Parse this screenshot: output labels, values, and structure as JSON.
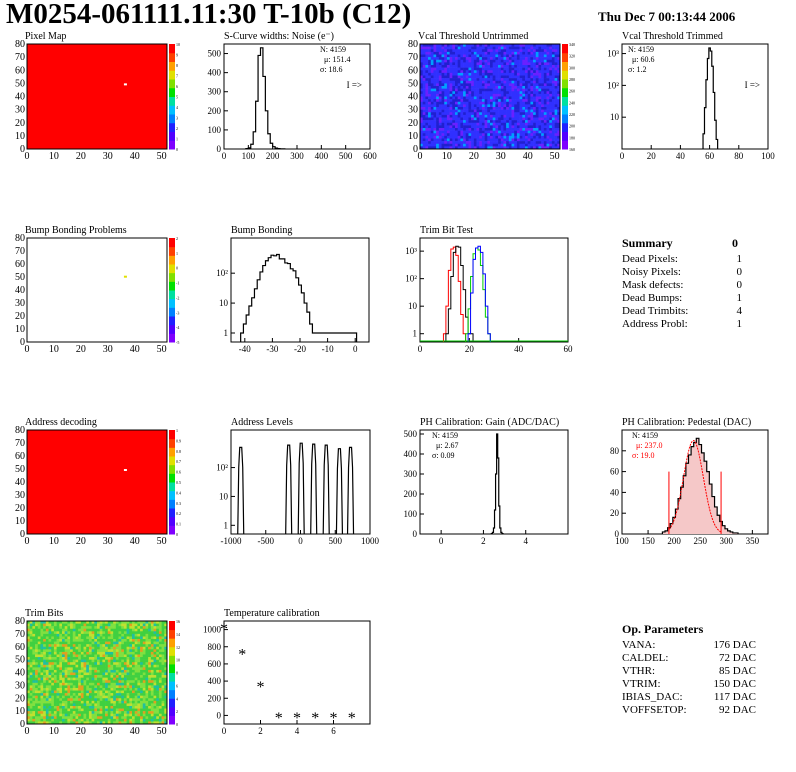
{
  "header": {
    "title": "M0254-061111.11:30 T-10b (C12)",
    "date": "Thu Dec  7 00:13:44 2006"
  },
  "summary": {
    "title": "Summary",
    "value": "0",
    "rows": [
      {
        "label": "Dead Pixels:",
        "value": "1"
      },
      {
        "label": "Noisy Pixels:",
        "value": "0"
      },
      {
        "label": "Mask defects:",
        "value": "0"
      },
      {
        "label": "Dead Bumps:",
        "value": "1"
      },
      {
        "label": "Dead Trimbits:",
        "value": "4"
      },
      {
        "label": "Address Probl:",
        "value": "1"
      }
    ]
  },
  "op_params": {
    "title": "Op. Parameters",
    "rows": [
      {
        "label": "VANA:",
        "value": "176 DAC"
      },
      {
        "label": "CALDEL:",
        "value": "72 DAC"
      },
      {
        "label": "VTHR:",
        "value": "85 DAC"
      },
      {
        "label": "VTRIM:",
        "value": "150 DAC"
      },
      {
        "label": "IBIAS_DAC:",
        "value": "117 DAC"
      },
      {
        "label": "VOFFSETOP:",
        "value": "92 DAC"
      }
    ]
  },
  "colors": {
    "map_red": "#ff0000",
    "bluish_map": "#3a3aff",
    "trimbit_green": "#3ccf3c",
    "hist_red": "#ff0000",
    "hist_green": "#00cc00",
    "hist_blue": "#0000ff",
    "stats_red": "#ff0000"
  },
  "chart_data": [
    {
      "id": "pixel-map",
      "type": "heatmap",
      "title": "Pixel Map",
      "xlim": [
        0,
        52
      ],
      "ylim": [
        0,
        80
      ],
      "xticks": [
        "0",
        "10",
        "20",
        "30",
        "40",
        "50"
      ],
      "yticks": [
        "0",
        "10",
        "20",
        "30",
        "40",
        "50",
        "60",
        "70",
        "80"
      ],
      "fill": "uniform red",
      "anomalies": [
        {
          "x": 36,
          "y": 50
        }
      ],
      "colorbar": [
        "0",
        "1",
        "2",
        "3",
        "4",
        "5",
        "6",
        "7",
        "8",
        "9",
        "10"
      ]
    },
    {
      "id": "scurve-noise",
      "type": "bar",
      "title": "S-Curve widths: Noise (e⁻)",
      "xlim": [
        0,
        600
      ],
      "ylim": [
        0,
        550
      ],
      "xticks": [
        "0",
        "100",
        "200",
        "300",
        "400",
        "500",
        "600"
      ],
      "yticks": [
        "0",
        "100",
        "200",
        "300",
        "400",
        "500"
      ],
      "stats": {
        "N": "4159",
        "mean": "151.4",
        "sigma": "18.6"
      },
      "note": "I =>",
      "x": [
        95,
        105,
        115,
        125,
        135,
        145,
        155,
        165,
        175,
        185,
        195,
        205,
        215,
        225,
        235,
        245
      ],
      "values": [
        2,
        6,
        25,
        90,
        250,
        490,
        530,
        380,
        200,
        80,
        30,
        12,
        5,
        2,
        1,
        1
      ]
    },
    {
      "id": "vcal-untrimmed",
      "type": "heatmap",
      "title": "Vcal Threshold Untrimmed",
      "xlim": [
        0,
        52
      ],
      "ylim": [
        0,
        80
      ],
      "xticks": [
        "0",
        "10",
        "20",
        "30",
        "40",
        "50"
      ],
      "yticks": [
        "0",
        "10",
        "20",
        "30",
        "40",
        "50",
        "60",
        "70",
        "80"
      ],
      "fill": "noisy blue",
      "colorbar": [
        "160",
        "180",
        "200",
        "220",
        "240",
        "260",
        "280",
        "300",
        "320",
        "340"
      ]
    },
    {
      "id": "vcal-trimmed",
      "type": "bar",
      "title": "Vcal Threshold Trimmed",
      "log_y": true,
      "xlim": [
        0,
        100
      ],
      "ylim": [
        1,
        2000
      ],
      "xticks": [
        "0",
        "20",
        "40",
        "60",
        "80",
        "100"
      ],
      "yticks": [
        "10",
        "10²",
        "10³"
      ],
      "stats": {
        "N": "4159",
        "mean": "60.6",
        "sigma": "1.2"
      },
      "note": "I =>",
      "x": [
        56,
        57,
        58,
        59,
        60,
        61,
        62,
        63,
        64,
        65
      ],
      "values": [
        3,
        20,
        150,
        700,
        1500,
        1200,
        400,
        60,
        8,
        2
      ]
    },
    {
      "id": "bump-problems",
      "type": "heatmap",
      "title": "Bump Bonding Problems",
      "xlim": [
        0,
        52
      ],
      "ylim": [
        0,
        80
      ],
      "xticks": [
        "0",
        "10",
        "20",
        "30",
        "40",
        "50"
      ],
      "yticks": [
        "0",
        "10",
        "20",
        "30",
        "40",
        "50",
        "60",
        "70",
        "80"
      ],
      "fill": "empty",
      "anomalies": [
        {
          "x": 36,
          "y": 51
        }
      ],
      "colorbar": [
        "-5",
        "-4",
        "-3",
        "-2",
        "-1",
        "0",
        "1",
        "2"
      ]
    },
    {
      "id": "bump-bonding",
      "type": "bar",
      "title": "Bump Bonding",
      "log_y": true,
      "xlim": [
        -45,
        5
      ],
      "ylim": [
        0.5,
        1500
      ],
      "xticks": [
        "-40",
        "-30",
        "-20",
        "-10",
        "0"
      ],
      "yticks": [
        "1",
        "10",
        "10²"
      ],
      "x": [
        -41,
        -40,
        -39,
        -38,
        -37,
        -36,
        -35,
        -34,
        -33,
        -32,
        -31,
        -30,
        -29,
        -28,
        -27,
        -26,
        -25,
        -24,
        -23,
        -22,
        -21,
        -20,
        -19,
        -18,
        -17,
        -16,
        -15,
        -14,
        -13,
        0
      ],
      "values": [
        1,
        2,
        4,
        8,
        15,
        30,
        60,
        110,
        180,
        260,
        330,
        400,
        380,
        420,
        300,
        300,
        220,
        210,
        140,
        120,
        70,
        40,
        22,
        10,
        5,
        2,
        1,
        1,
        1,
        1
      ]
    },
    {
      "id": "trim-bit-test",
      "type": "line",
      "title": "Trim Bit Test",
      "log_y": true,
      "xlim": [
        0,
        60
      ],
      "ylim": [
        0.5,
        3000
      ],
      "xticks": [
        "0",
        "20",
        "40",
        "60"
      ],
      "yticks": [
        "1",
        "10",
        "10²",
        "10³"
      ],
      "series": [
        {
          "color": "red",
          "x": [
            10,
            11,
            12,
            13,
            14,
            15,
            16,
            17,
            18
          ],
          "values": [
            1,
            10,
            200,
            1200,
            1400,
            700,
            80,
            5,
            1
          ]
        },
        {
          "color": "black",
          "x": [
            11,
            12,
            13,
            14,
            15,
            16,
            17,
            18,
            19,
            20,
            21
          ],
          "values": [
            1,
            8,
            120,
            900,
            1500,
            1400,
            300,
            40,
            4,
            1,
            1
          ]
        },
        {
          "color": "green",
          "x": [
            19,
            20,
            21,
            22,
            23,
            24,
            25,
            26,
            27,
            28
          ],
          "values": [
            1,
            8,
            120,
            800,
            1300,
            1100,
            300,
            40,
            4,
            1
          ]
        },
        {
          "color": "blue",
          "x": [
            20,
            21,
            22,
            23,
            24,
            25,
            26,
            27,
            28
          ],
          "values": [
            1,
            30,
            500,
            1300,
            1500,
            900,
            150,
            10,
            1
          ]
        }
      ]
    },
    {
      "id": "address-decoding",
      "type": "heatmap",
      "title": "Address decoding",
      "xlim": [
        0,
        52
      ],
      "ylim": [
        0,
        80
      ],
      "xticks": [
        "0",
        "10",
        "20",
        "30",
        "40",
        "50"
      ],
      "yticks": [
        "0",
        "10",
        "20",
        "30",
        "40",
        "50",
        "60",
        "70",
        "80"
      ],
      "fill": "uniform red",
      "anomalies": [
        {
          "x": 36,
          "y": 50
        }
      ],
      "colorbar": [
        "0",
        "0.1",
        "0.2",
        "0.3",
        "0.4",
        "0.5",
        "0.6",
        "0.7",
        "0.8",
        "0.9",
        "1"
      ]
    },
    {
      "id": "address-levels",
      "type": "bar",
      "title": "Address Levels",
      "log_y": true,
      "xlim": [
        -1000,
        1000
      ],
      "ylim": [
        0.5,
        2000
      ],
      "xticks": [
        "-1000",
        "-500",
        "0",
        "500",
        "1000"
      ],
      "yticks": [
        "1",
        "10",
        "10²"
      ],
      "peaks": [
        {
          "x": -860,
          "peak": 500
        },
        {
          "x": -170,
          "peak": 600
        },
        {
          "x": 10,
          "peak": 700
        },
        {
          "x": 190,
          "peak": 650
        },
        {
          "x": 370,
          "peak": 600
        },
        {
          "x": 560,
          "peak": 450
        },
        {
          "x": 720,
          "peak": 500
        }
      ]
    },
    {
      "id": "ph-gain",
      "type": "bar",
      "title": "PH Calibration: Gain (ADC/DAC)",
      "xlim": [
        -1,
        6
      ],
      "ylim": [
        0,
        520
      ],
      "xticks": [
        "0",
        "2",
        "4"
      ],
      "yticks": [
        "0",
        "100",
        "200",
        "300",
        "400",
        "500"
      ],
      "stats": {
        "N": "4159",
        "mean": "2.67",
        "sigma": "0.09"
      },
      "x": [
        2.4,
        2.45,
        2.5,
        2.55,
        2.6,
        2.65,
        2.7,
        2.75,
        2.8,
        2.85,
        2.9
      ],
      "values": [
        2,
        8,
        30,
        120,
        300,
        500,
        380,
        140,
        30,
        8,
        2
      ]
    },
    {
      "id": "ph-pedestal",
      "type": "bar",
      "title": "PH Calibration: Pedestal (DAC)",
      "xlim": [
        100,
        380
      ],
      "ylim": [
        0,
        100
      ],
      "xticks": [
        "100",
        "150",
        "200",
        "250",
        "300",
        "350"
      ],
      "yticks": [
        "0",
        "20",
        "40",
        "60",
        "80"
      ],
      "stats": {
        "N": "4159",
        "mean": "237.0",
        "sigma": "19.0"
      },
      "fit_range": [
        190,
        290
      ],
      "x": [
        180,
        185,
        190,
        195,
        200,
        205,
        210,
        215,
        220,
        225,
        230,
        235,
        240,
        245,
        250,
        255,
        260,
        265,
        270,
        275,
        280,
        285,
        290,
        295,
        300,
        305,
        310,
        315,
        320
      ],
      "values": [
        2,
        3,
        6,
        10,
        16,
        24,
        34,
        45,
        56,
        68,
        76,
        84,
        88,
        92,
        86,
        78,
        70,
        60,
        48,
        36,
        26,
        18,
        12,
        8,
        5,
        3,
        2,
        1,
        1
      ]
    },
    {
      "id": "trim-bits",
      "type": "heatmap",
      "title": "Trim Bits",
      "xlim": [
        0,
        52
      ],
      "ylim": [
        0,
        80
      ],
      "xticks": [
        "0",
        "10",
        "20",
        "30",
        "40",
        "50"
      ],
      "yticks": [
        "0",
        "10",
        "20",
        "30",
        "40",
        "50",
        "60",
        "70",
        "80"
      ],
      "fill": "noisy green",
      "colorbar": [
        "0",
        "2",
        "4",
        "6",
        "8",
        "10",
        "12",
        "14",
        "16"
      ]
    },
    {
      "id": "temperature-calibration",
      "type": "scatter",
      "title": "Temperature calibration",
      "xlim": [
        0,
        8
      ],
      "ylim": [
        -100,
        1100
      ],
      "xticks": [
        "0",
        "2",
        "4",
        "6"
      ],
      "yticks": [
        "0",
        "200",
        "400",
        "600",
        "800",
        "1000"
      ],
      "x": [
        0,
        1,
        2,
        3,
        4,
        5,
        6,
        7
      ],
      "values": [
        1020,
        720,
        340,
        -20,
        -20,
        -20,
        -20,
        -20
      ]
    }
  ]
}
